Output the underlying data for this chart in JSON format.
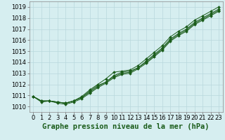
{
  "title": "Graphe pression niveau de la mer (hPa)",
  "bg_color": "#d6eef0",
  "grid_color": "#b8d8dc",
  "line_color": "#1a5c1a",
  "xlim": [
    -0.5,
    23.5
  ],
  "ylim": [
    1009.5,
    1019.5
  ],
  "yticks": [
    1010,
    1011,
    1012,
    1013,
    1014,
    1015,
    1016,
    1017,
    1018,
    1019
  ],
  "xticks": [
    0,
    1,
    2,
    3,
    4,
    5,
    6,
    7,
    8,
    9,
    10,
    11,
    12,
    13,
    14,
    15,
    16,
    17,
    18,
    19,
    20,
    21,
    22,
    23
  ],
  "hours": [
    0,
    1,
    2,
    3,
    4,
    5,
    6,
    7,
    8,
    9,
    10,
    11,
    12,
    13,
    14,
    15,
    16,
    17,
    18,
    19,
    20,
    21,
    22,
    23
  ],
  "line1": [
    1010.9,
    1010.5,
    1010.5,
    1010.4,
    1010.3,
    1010.5,
    1010.8,
    1011.4,
    1011.9,
    1012.2,
    1012.8,
    1013.1,
    1013.2,
    1013.5,
    1014.1,
    1014.7,
    1015.3,
    1016.1,
    1016.6,
    1017.0,
    1017.6,
    1018.0,
    1018.4,
    1018.8
  ],
  "line2": [
    1010.9,
    1010.4,
    1010.5,
    1010.3,
    1010.2,
    1010.4,
    1010.7,
    1011.2,
    1011.7,
    1012.1,
    1012.6,
    1012.9,
    1013.0,
    1013.4,
    1013.9,
    1014.5,
    1015.1,
    1015.9,
    1016.4,
    1016.8,
    1017.4,
    1017.8,
    1018.2,
    1018.6
  ],
  "line3": [
    1010.9,
    1010.5,
    1010.5,
    1010.4,
    1010.3,
    1010.5,
    1010.9,
    1011.5,
    1012.0,
    1012.5,
    1013.1,
    1013.2,
    1013.3,
    1013.7,
    1014.3,
    1014.9,
    1015.5,
    1016.3,
    1016.8,
    1017.2,
    1017.8,
    1018.2,
    1018.6,
    1019.0
  ],
  "line4": [
    1010.9,
    1010.5,
    1010.5,
    1010.4,
    1010.3,
    1010.5,
    1010.8,
    1011.3,
    1011.8,
    1012.2,
    1012.7,
    1013.0,
    1013.1,
    1013.5,
    1014.0,
    1014.6,
    1015.2,
    1016.0,
    1016.5,
    1016.9,
    1017.5,
    1017.9,
    1018.3,
    1018.7
  ],
  "title_fontsize": 7.5,
  "tick_fontsize": 6
}
